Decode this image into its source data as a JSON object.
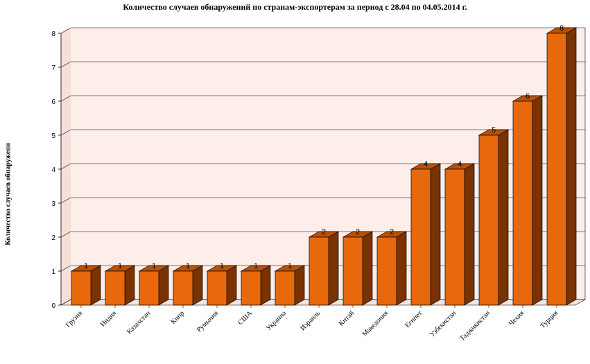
{
  "chart_data": {
    "type": "bar",
    "title": "Количество случаев обнаружений по странам-экспортерам за период с 28.04 по 04.05.2014 г.",
    "ylabel": "Количество случаев обнаружени",
    "xlabel": "",
    "ylim": [
      0,
      8
    ],
    "yticks": [
      "0",
      "1",
      "2",
      "3",
      "4",
      "5",
      "6",
      "7",
      "8"
    ],
    "grid": true,
    "legend": "none",
    "categories": [
      "Грузия",
      "Индия",
      "Казахстан",
      "Кипр",
      "Румыния",
      "США",
      "Украина",
      "Израиль",
      "Китай",
      "Македония",
      "Египет",
      "Узбекистан",
      "Таджикистан",
      "Чехия",
      "Турция"
    ],
    "values": [
      1,
      1,
      1,
      1,
      1,
      1,
      1,
      2,
      2,
      2,
      4,
      4,
      5,
      6,
      8
    ],
    "value_labels": [
      "1",
      "1",
      "1",
      "1",
      "1",
      "1",
      "1",
      "2",
      "2",
      "2",
      "4",
      "4",
      "5",
      "6",
      "8"
    ],
    "colors": {
      "bar_front": "#e8680c",
      "bar_side": "#7a3200",
      "bar_top": "#b85208",
      "plot_background": "#fdeeea",
      "grid": "#000000"
    }
  }
}
